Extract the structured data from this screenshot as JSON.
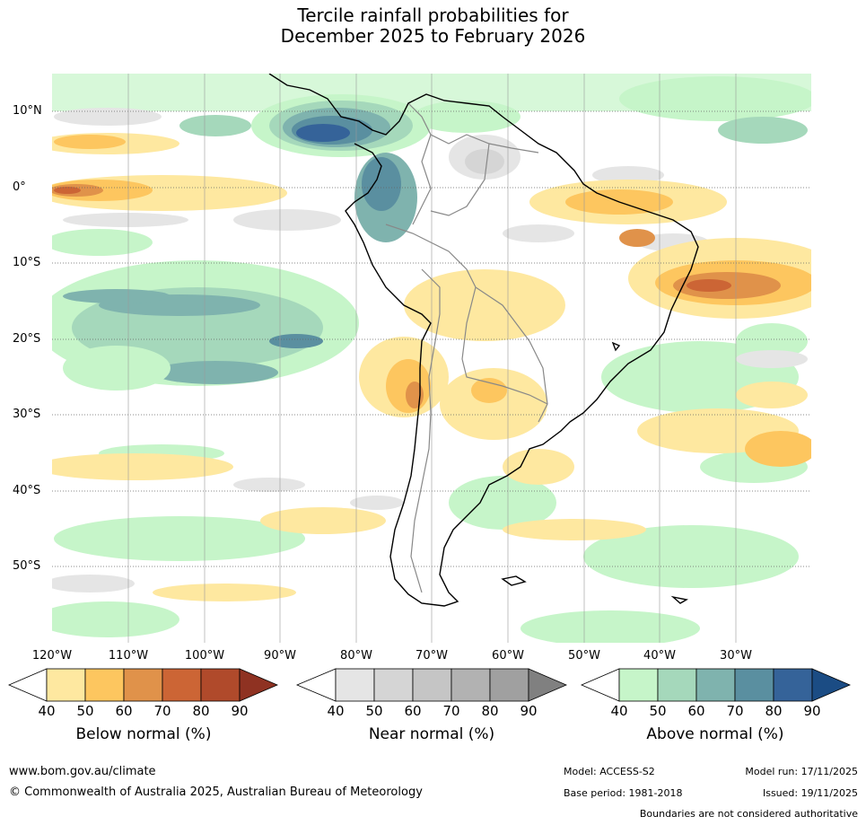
{
  "title": {
    "line1": "Tercile rainfall probabilities for",
    "line2": "December 2025 to February 2026"
  },
  "latitude_labels": [
    "10°N",
    "0°",
    "10°S",
    "20°S",
    "30°S",
    "40°S",
    "50°S"
  ],
  "longitude_labels": [
    "120°W",
    "110°W",
    "100°W",
    "90°W",
    "80°W",
    "70°W",
    "60°W",
    "50°W",
    "40°W",
    "30°W"
  ],
  "colorbars": [
    {
      "label": "Below normal (%)",
      "ticks": [
        "40",
        "50",
        "60",
        "70",
        "80",
        "90"
      ],
      "colors": [
        "#ffffff",
        "#fee8a0",
        "#fdc65f",
        "#e0924a",
        "#cc6535",
        "#b04a2b",
        "#8f3222"
      ]
    },
    {
      "label": "Near normal (%)",
      "ticks": [
        "40",
        "50",
        "60",
        "70",
        "80",
        "90"
      ],
      "colors": [
        "#ffffff",
        "#e5e5e5",
        "#d5d5d5",
        "#c5c5c5",
        "#b2b2b2",
        "#a0a0a0",
        "#808080"
      ]
    },
    {
      "label": "Above normal (%)",
      "ticks": [
        "40",
        "50",
        "60",
        "70",
        "80",
        "90"
      ],
      "colors": [
        "#ffffff",
        "#c6f5c9",
        "#a5d8bb",
        "#7fb3ae",
        "#5a8fa0",
        "#356399",
        "#1b4c84"
      ]
    }
  ],
  "footer": {
    "url": "www.bom.gov.au/climate",
    "copyright": "© Commonwealth of Australia 2025, Australian Bureau of Meteorology",
    "model": "Model: ACCESS-S2",
    "base_period": "Base period: 1981-2018",
    "model_run": "Model run: 17/11/2025",
    "issued": "Issued: 19/11/2025",
    "disclaimer": "Boundaries are not considered authoritative"
  }
}
